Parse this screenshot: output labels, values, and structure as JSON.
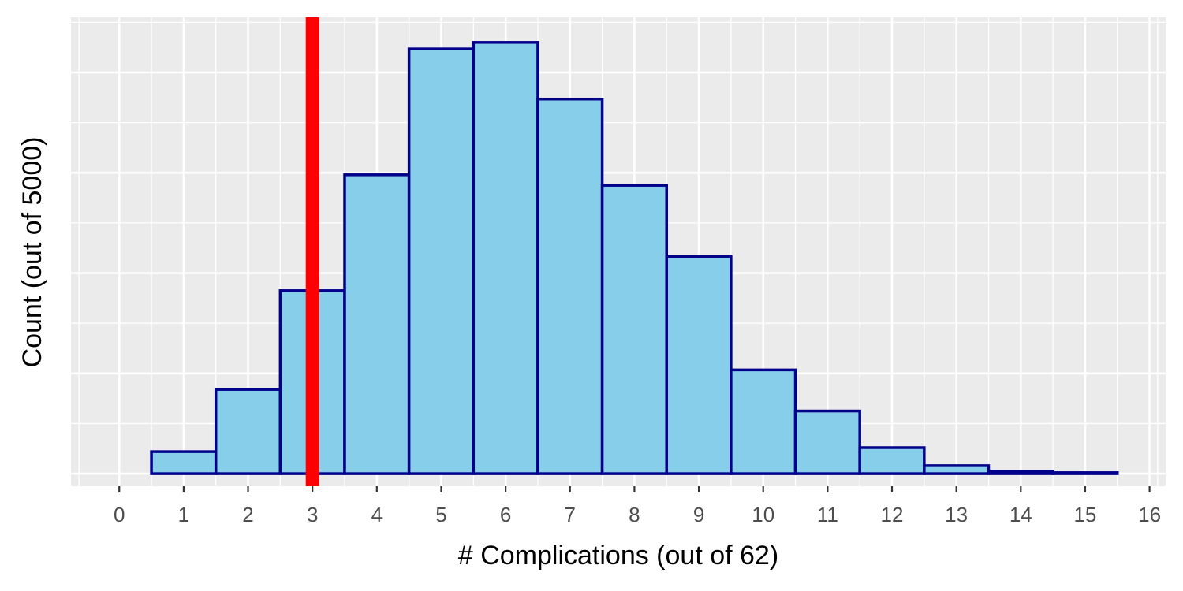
{
  "chart_data": {
    "type": "bar",
    "xlabel": "# Complications (out of 62)",
    "ylabel": "Count (out of 5000)",
    "x_ticks": [
      0,
      1,
      2,
      3,
      4,
      5,
      6,
      7,
      8,
      9,
      10,
      11,
      12,
      13,
      14,
      15,
      16
    ],
    "xlim": [
      -0.75,
      16.25
    ],
    "ylim": [
      -25,
      910
    ],
    "y_tick_labels_shown": false,
    "grid": true,
    "bin_width": 1,
    "bins": [
      {
        "x": 1,
        "count": 44
      },
      {
        "x": 2,
        "count": 168
      },
      {
        "x": 3,
        "count": 365
      },
      {
        "x": 4,
        "count": 596
      },
      {
        "x": 5,
        "count": 847
      },
      {
        "x": 6,
        "count": 860
      },
      {
        "x": 7,
        "count": 747
      },
      {
        "x": 8,
        "count": 575
      },
      {
        "x": 9,
        "count": 433
      },
      {
        "x": 10,
        "count": 207
      },
      {
        "x": 11,
        "count": 125
      },
      {
        "x": 12,
        "count": 52
      },
      {
        "x": 13,
        "count": 16
      },
      {
        "x": 14,
        "count": 5
      },
      {
        "x": 15,
        "count": 2
      }
    ],
    "reference_line": {
      "x": 3,
      "color": "#ff0000"
    },
    "colors": {
      "bar_fill": "#87ceeb",
      "bar_stroke": "#00008b",
      "panel_background": "#ebebeb",
      "grid": "#ffffff"
    }
  }
}
